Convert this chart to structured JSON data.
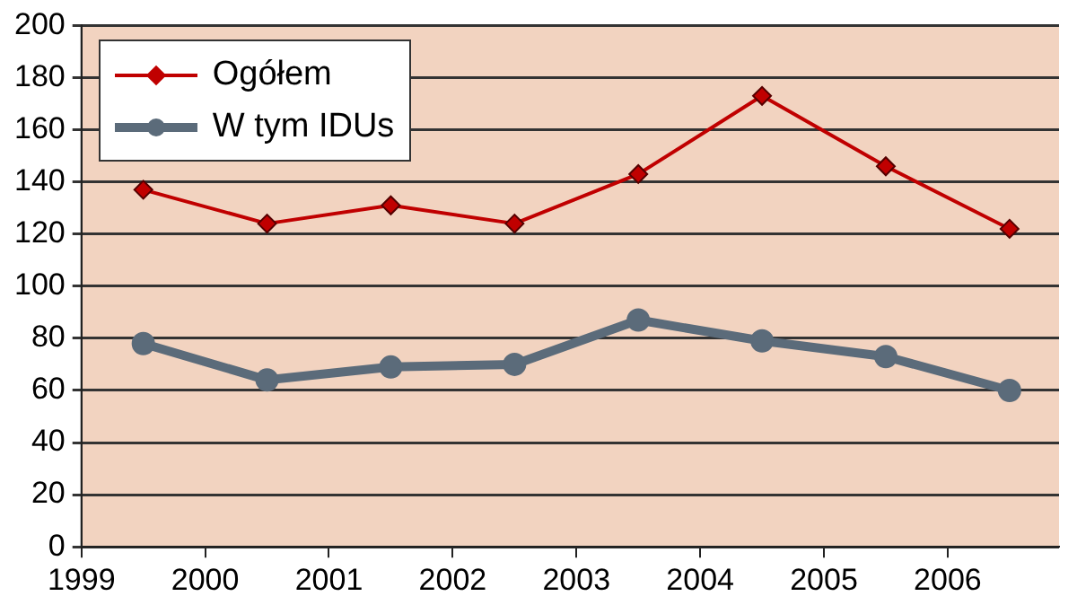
{
  "chart_data": {
    "type": "line",
    "x": [
      1999.5,
      2000.5,
      2001.5,
      2002.5,
      2003.5,
      2004.5,
      2005.5,
      2006.5
    ],
    "series": [
      {
        "name": "Ogółem",
        "color": "#c00000",
        "marker": "diamond",
        "values": [
          137,
          124,
          131,
          124,
          143,
          173,
          146,
          122
        ]
      },
      {
        "name": "W tym IDUs",
        "color": "#5b6b7a",
        "marker": "circle",
        "values": [
          78,
          64,
          69,
          70,
          87,
          79,
          73,
          60
        ]
      }
    ],
    "xlim": [
      1999,
      2006.9
    ],
    "xticks": [
      1999,
      2000,
      2001,
      2002,
      2003,
      2004,
      2005,
      2006
    ],
    "ylim": [
      0,
      200
    ],
    "yticks": [
      0,
      20,
      40,
      60,
      80,
      100,
      120,
      140,
      160,
      180,
      200
    ],
    "grid": "y",
    "legend": "top left"
  }
}
